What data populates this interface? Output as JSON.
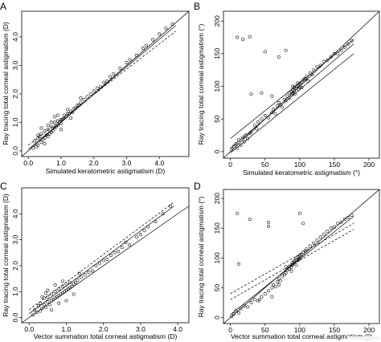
{
  "panels": [
    {
      "id": "A",
      "panel_label": "A",
      "xlabel": "Simulated keratometric astigmatism (D)",
      "ylabel": "Ray tracing total corneal astigmatism (D)",
      "xticks": [
        "0.0",
        "1.0",
        "2.0",
        "3.0",
        "4.0"
      ],
      "yticks": [
        "0.0",
        "1.0",
        "2.0",
        "3.0",
        "4.0"
      ]
    },
    {
      "id": "B",
      "panel_label": "B",
      "xlabel": "Simulated keratometric astigmatism (°)",
      "ylabel": "Ray tracing total corneal astigmatism (°)",
      "xticks": [
        "0",
        "50",
        "100",
        "150",
        "200"
      ],
      "yticks": [
        "0",
        "50",
        "100",
        "150",
        "200"
      ]
    },
    {
      "id": "C",
      "panel_label": "C",
      "xlabel": "Vector summation total corneal astigmatism (D)",
      "ylabel": "Ray tracing total corneal astigmatism (D)",
      "xticks": [
        "0.0",
        "1.0",
        "2.0",
        "3.0",
        "4.0"
      ],
      "yticks": [
        "0.0",
        "1.0",
        "2.0",
        "3.0",
        "4.0"
      ]
    },
    {
      "id": "D",
      "panel_label": "D",
      "xlabel": "Vector summation total corneal astigmatism (°)",
      "ylabel": "Ray tracing total corneal astigmatism (°)",
      "xticks": [
        "0",
        "50",
        "100",
        "150",
        "200"
      ],
      "yticks": [
        "0",
        "50",
        "100",
        "150",
        "200"
      ]
    }
  ],
  "chart_data": [
    {
      "type": "scatter",
      "panel": "A",
      "xlabel": "Simulated keratometric astigmatism (D)",
      "ylabel": "Ray tracing total corneal astigmatism (D)",
      "xlim": [
        -0.2,
        4.9
      ],
      "ylim": [
        -0.2,
        4.9
      ],
      "xticks": [
        0,
        1,
        2,
        3,
        4
      ],
      "yticks": [
        0,
        1,
        2,
        3,
        4
      ],
      "grid": false,
      "x": [
        0.15,
        0.2,
        0.25,
        0.3,
        0.3,
        0.35,
        0.4,
        0.4,
        0.45,
        0.5,
        0.5,
        0.55,
        0.6,
        0.6,
        0.65,
        0.7,
        0.7,
        0.75,
        0.8,
        0.8,
        0.85,
        0.9,
        0.9,
        0.95,
        1.0,
        1.0,
        1.05,
        1.1,
        1.1,
        1.15,
        1.2,
        1.25,
        1.3,
        1.35,
        1.4,
        1.45,
        1.5,
        1.55,
        1.6,
        1.7,
        1.8,
        1.9,
        2.0,
        2.1,
        2.2,
        2.3,
        2.5,
        2.6,
        2.8,
        3.0,
        3.1,
        3.3,
        3.5,
        3.6,
        3.8,
        4.0,
        4.2,
        4.4,
        0.4,
        0.6,
        0.8,
        1.2,
        0.5,
        1.0,
        0.3,
        0.9,
        1.3,
        0.7,
        1.6,
        2.4
      ],
      "y": [
        0.1,
        0.35,
        0.15,
        0.45,
        0.2,
        0.5,
        0.3,
        0.6,
        0.4,
        0.45,
        0.7,
        0.55,
        0.5,
        0.75,
        0.6,
        0.65,
        0.85,
        0.7,
        0.8,
        1.0,
        0.85,
        0.9,
        1.05,
        1.0,
        1.1,
        0.95,
        1.1,
        1.15,
        1.25,
        1.2,
        1.3,
        1.3,
        1.4,
        1.35,
        1.5,
        1.5,
        1.6,
        1.6,
        1.7,
        1.8,
        1.9,
        2.0,
        2.1,
        2.2,
        2.25,
        2.4,
        2.6,
        2.7,
        2.9,
        3.1,
        3.2,
        3.35,
        3.6,
        3.7,
        3.9,
        4.1,
        4.3,
        4.45,
        0.8,
        0.9,
        1.2,
        1.45,
        0.25,
        0.75,
        0.55,
        1.25,
        1.15,
        1.0,
        1.85,
        2.45
      ],
      "lines": [
        {
          "style": "solid",
          "x": [
            -0.2,
            4.9
          ],
          "y": [
            -0.2,
            4.9
          ]
        },
        {
          "style": "solid",
          "x": [
            0,
            4.5
          ],
          "y": [
            0.05,
            4.4
          ]
        },
        {
          "style": "dashed",
          "x": [
            0,
            4.5
          ],
          "y": [
            0.2,
            4.2
          ]
        }
      ]
    },
    {
      "type": "scatter",
      "panel": "B",
      "xlabel": "Simulated keratometric astigmatism (°)",
      "ylabel": "Ray tracing total corneal astigmatism (°)",
      "xlim": [
        -10,
        215
      ],
      "ylim": [
        -10,
        215
      ],
      "xticks": [
        0,
        50,
        100,
        150,
        200
      ],
      "yticks": [
        0,
        50,
        100,
        150,
        200
      ],
      "grid": false,
      "x": [
        2,
        5,
        8,
        10,
        12,
        15,
        18,
        20,
        22,
        25,
        28,
        30,
        35,
        38,
        40,
        45,
        50,
        55,
        60,
        62,
        65,
        68,
        70,
        72,
        75,
        78,
        80,
        82,
        85,
        85,
        88,
        88,
        90,
        90,
        92,
        92,
        95,
        95,
        98,
        98,
        100,
        100,
        102,
        105,
        108,
        110,
        115,
        120,
        125,
        130,
        135,
        140,
        145,
        150,
        155,
        160,
        165,
        170,
        175,
        10,
        18,
        28,
        50,
        80,
        60,
        70,
        90,
        93,
        97,
        103,
        107,
        112,
        118,
        45,
        30
      ],
      "y": [
        3,
        8,
        12,
        5,
        18,
        10,
        22,
        15,
        25,
        20,
        28,
        30,
        40,
        35,
        45,
        50,
        55,
        52,
        60,
        65,
        58,
        70,
        75,
        72,
        68,
        80,
        78,
        85,
        82,
        90,
        88,
        92,
        95,
        90,
        98,
        93,
        97,
        100,
        96,
        102,
        104,
        99,
        106,
        110,
        112,
        115,
        120,
        125,
        130,
        132,
        138,
        140,
        145,
        150,
        150,
        155,
        160,
        165,
        170,
        175,
        172,
        176,
        153,
        155,
        85,
        145,
        100,
        88,
        105,
        98,
        110,
        108,
        118,
        90,
        88
      ],
      "lines": [
        {
          "style": "solid",
          "x": [
            0,
            178
          ],
          "y": [
            20,
            172
          ]
        },
        {
          "style": "solid",
          "x": [
            0,
            178
          ],
          "y": [
            5,
            165
          ]
        },
        {
          "style": "solid",
          "x": [
            0,
            178
          ],
          "y": [
            -2,
            150
          ]
        },
        {
          "style": "solid",
          "x": [
            -10,
            215
          ],
          "y": [
            -10,
            215
          ]
        }
      ]
    },
    {
      "type": "scatter",
      "panel": "C",
      "xlabel": "Vector summation total corneal astigmatism (D)",
      "ylabel": "Ray tracing total corneal astigmatism (D)",
      "xlim": [
        -0.2,
        4.3
      ],
      "ylim": [
        -0.2,
        5.0
      ],
      "xticks": [
        0,
        1,
        2,
        3,
        4
      ],
      "yticks": [
        0,
        1,
        2,
        3,
        4
      ],
      "grid": false,
      "x": [
        0.1,
        0.15,
        0.2,
        0.25,
        0.3,
        0.3,
        0.35,
        0.4,
        0.4,
        0.45,
        0.5,
        0.5,
        0.55,
        0.6,
        0.6,
        0.65,
        0.7,
        0.7,
        0.75,
        0.8,
        0.8,
        0.85,
        0.9,
        0.9,
        0.95,
        1.0,
        1.0,
        1.05,
        1.1,
        1.1,
        1.15,
        1.2,
        1.25,
        1.3,
        1.4,
        1.5,
        1.6,
        1.7,
        1.8,
        1.9,
        2.0,
        2.1,
        2.2,
        2.3,
        2.4,
        2.5,
        2.7,
        2.9,
        3.0,
        3.2,
        3.4,
        3.6,
        3.8,
        0.35,
        0.5,
        0.7,
        0.9,
        1.0,
        1.2,
        0.6,
        0.45,
        0.8,
        1.35,
        2.6,
        3.1
      ],
      "y": [
        0.1,
        0.3,
        0.2,
        0.45,
        0.25,
        0.55,
        0.35,
        0.5,
        0.75,
        0.4,
        0.6,
        0.8,
        0.5,
        0.65,
        0.9,
        0.7,
        0.75,
        1.0,
        0.8,
        0.85,
        1.1,
        0.9,
        0.95,
        1.2,
        1.0,
        1.05,
        1.3,
        1.1,
        1.15,
        1.35,
        1.2,
        1.3,
        1.35,
        1.45,
        1.55,
        1.65,
        1.75,
        1.8,
        2.0,
        2.1,
        2.2,
        2.25,
        2.4,
        2.5,
        2.55,
        2.7,
        2.8,
        3.1,
        3.2,
        3.5,
        3.7,
        4.0,
        4.3,
        0.8,
        1.05,
        1.25,
        1.4,
        0.65,
        0.9,
        0.3,
        0.95,
        0.55,
        1.7,
        2.9,
        3.35
      ],
      "lines": [
        {
          "style": "solid",
          "x": [
            -0.2,
            4.3
          ],
          "y": [
            -0.2,
            4.3
          ]
        },
        {
          "style": "solid",
          "x": [
            0,
            3.9
          ],
          "y": [
            0.15,
            4.3
          ]
        },
        {
          "style": "dashed",
          "x": [
            0,
            3.9
          ],
          "y": [
            0.3,
            4.45
          ]
        }
      ]
    },
    {
      "type": "scatter",
      "panel": "D",
      "xlabel": "Vector summation total corneal astigmatism (°)",
      "ylabel": "Ray tracing total corneal astigmatism (°)",
      "xlim": [
        -10,
        215
      ],
      "ylim": [
        -10,
        215
      ],
      "xticks": [
        0,
        50,
        100,
        150,
        200
      ],
      "yticks": [
        0,
        50,
        100,
        150,
        200
      ],
      "grid": false,
      "x": [
        2,
        5,
        8,
        12,
        15,
        20,
        25,
        30,
        35,
        40,
        45,
        50,
        55,
        60,
        62,
        65,
        68,
        70,
        72,
        75,
        78,
        80,
        82,
        85,
        85,
        88,
        88,
        90,
        90,
        92,
        92,
        95,
        95,
        98,
        98,
        100,
        100,
        102,
        105,
        108,
        110,
        115,
        120,
        125,
        130,
        135,
        140,
        145,
        150,
        155,
        160,
        165,
        170,
        175,
        10,
        12,
        28,
        55,
        55,
        100,
        105,
        95,
        60,
        42,
        70,
        80,
        88
      ],
      "y": [
        2,
        6,
        12,
        8,
        15,
        20,
        18,
        25,
        30,
        28,
        35,
        40,
        45,
        50,
        55,
        52,
        60,
        65,
        62,
        70,
        72,
        75,
        80,
        82,
        86,
        88,
        84,
        92,
        89,
        95,
        93,
        97,
        100,
        96,
        102,
        104,
        99,
        106,
        110,
        112,
        115,
        120,
        125,
        130,
        135,
        140,
        145,
        150,
        152,
        158,
        160,
        165,
        168,
        172,
        175,
        90,
        165,
        160,
        153,
        175,
        158,
        88,
        35,
        30,
        55,
        85,
        78
      ],
      "lines": [
        {
          "style": "solid",
          "x": [
            -10,
            215
          ],
          "y": [
            -10,
            215
          ]
        },
        {
          "style": "solid",
          "x": [
            0,
            178
          ],
          "y": [
            5,
            170
          ]
        },
        {
          "style": "dashed",
          "x": [
            0,
            178
          ],
          "y": [
            40,
            158
          ]
        },
        {
          "style": "dashed",
          "x": [
            0,
            178
          ],
          "y": [
            30,
            148
          ]
        }
      ]
    }
  ]
}
